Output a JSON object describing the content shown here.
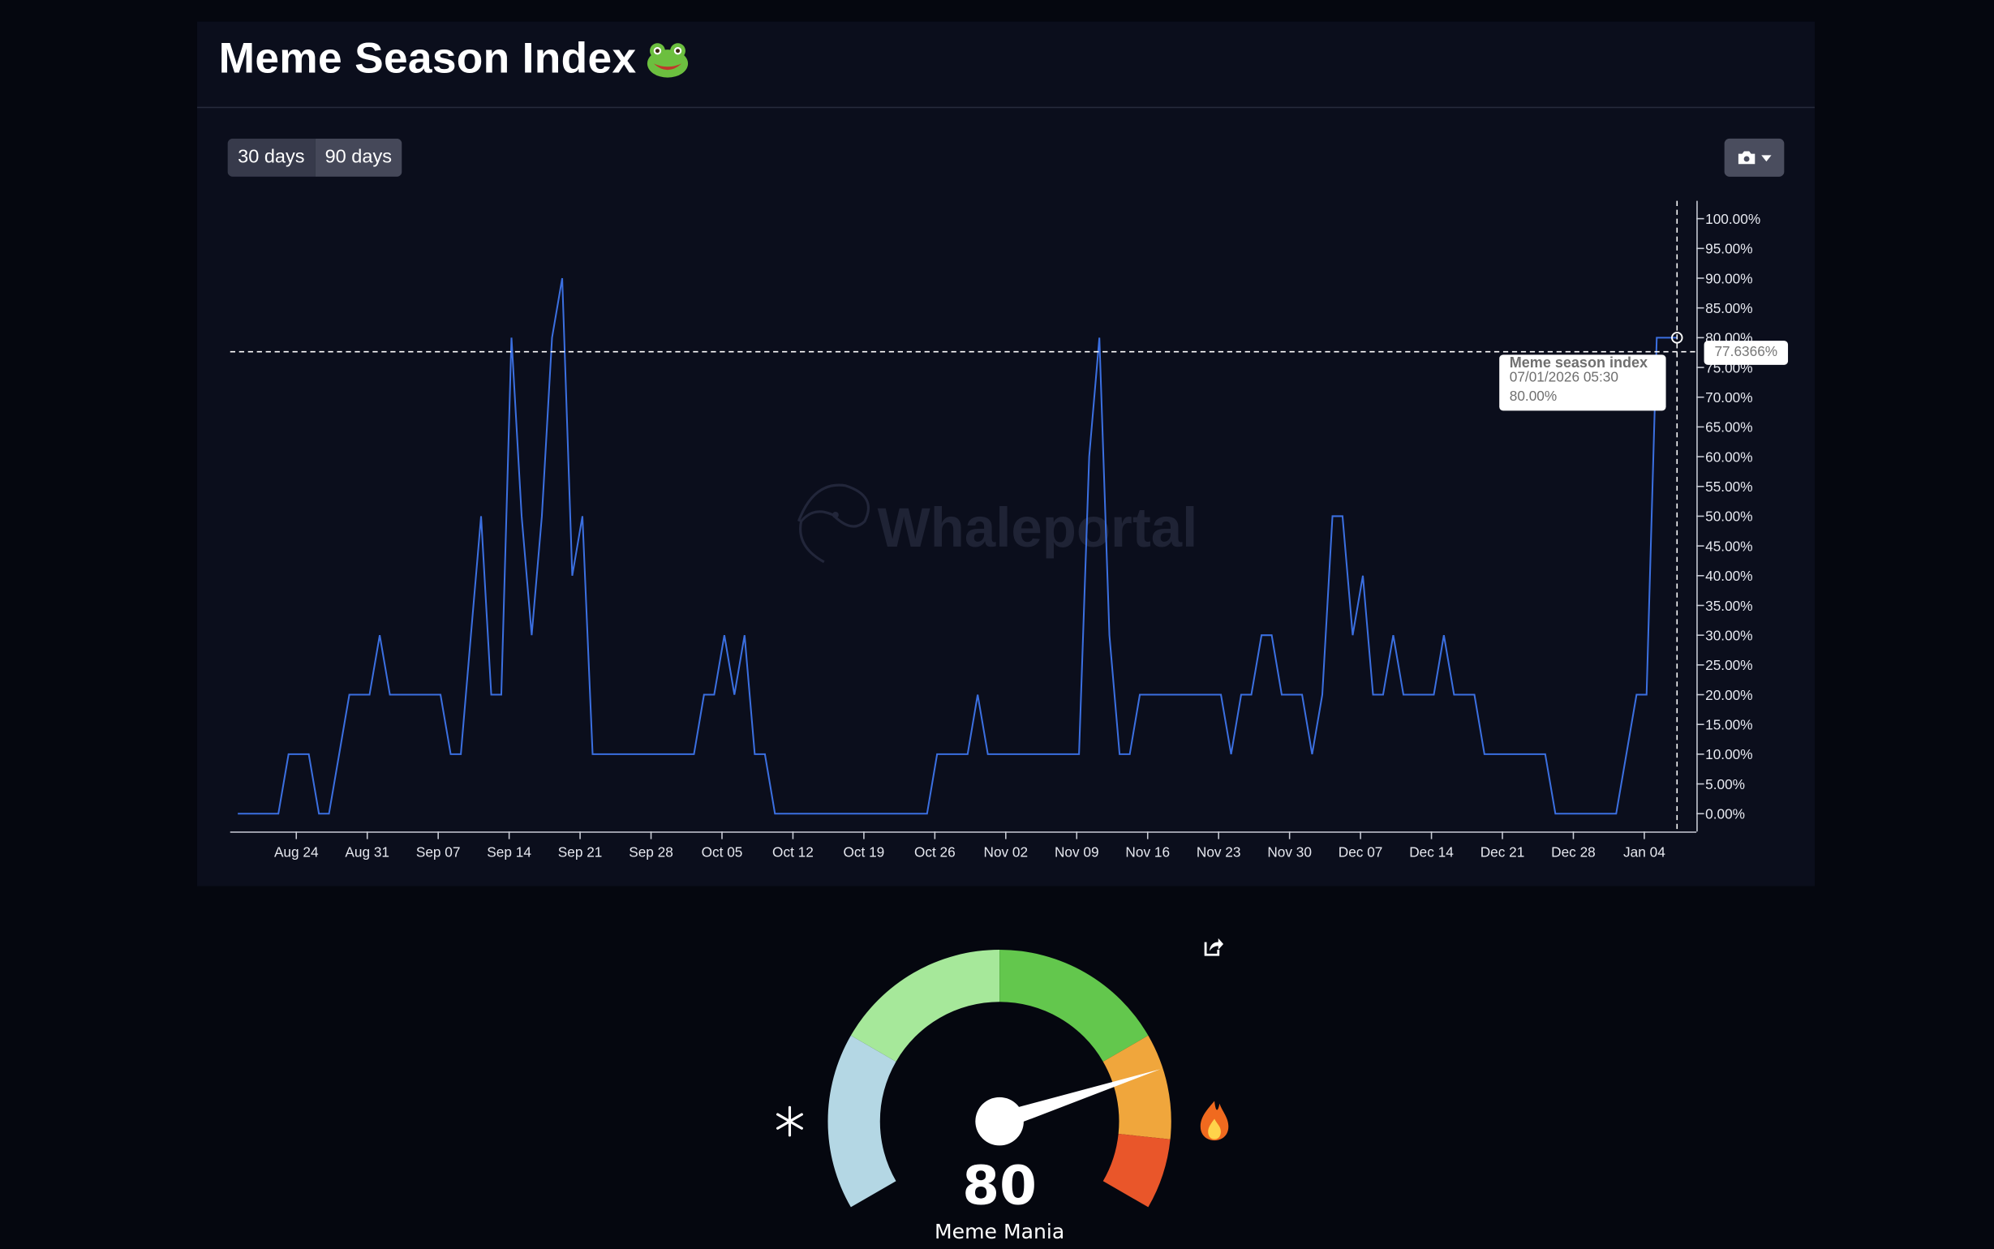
{
  "page": {
    "title": "Meme Season Index",
    "title_icon": "frog-emoji-icon",
    "range_buttons": [
      {
        "label": "30 days"
      },
      {
        "label": "90 days"
      }
    ],
    "export_button_icon": "camera-icon",
    "watermark": "Whaleportal"
  },
  "colors": {
    "background": "#05070f",
    "card": "#0b0e1c",
    "line": "#3b6fe0",
    "gauge_segments": [
      "#b4d7e4",
      "#a6e89a",
      "#63c74d",
      "#f0a63c",
      "#e9562a"
    ]
  },
  "tooltip": {
    "series": "Meme season index",
    "datetime": "07/01/2026 05:30",
    "value": "80.00%"
  },
  "crosshair": {
    "y_value": 77.6366,
    "y_label": "77.6366%",
    "x_date": "2026-01-07"
  },
  "chart_data": {
    "type": "line",
    "series": [
      {
        "name": "Meme season index"
      }
    ],
    "ylim": [
      0,
      100
    ],
    "y_axis_position": "right",
    "grid": false,
    "y_ticks": [
      0,
      5,
      10,
      15,
      20,
      25,
      30,
      35,
      40,
      45,
      50,
      55,
      60,
      65,
      70,
      75,
      80,
      85,
      90,
      95,
      100
    ],
    "y_tick_labels": [
      "0.00%",
      "5.00%",
      "10.00%",
      "15.00%",
      "20.00%",
      "25.00%",
      "30.00%",
      "35.00%",
      "40.00%",
      "45.00%",
      "50.00%",
      "55.00%",
      "60.00%",
      "65.00%",
      "70.00%",
      "75.00%",
      "80.00%",
      "85.00%",
      "90.00%",
      "95.00%",
      "100.00%"
    ],
    "x_ticks": [
      "2025-08-24",
      "2025-08-31",
      "2025-09-07",
      "2025-09-14",
      "2025-09-21",
      "2025-09-28",
      "2025-10-05",
      "2025-10-12",
      "2025-10-19",
      "2025-10-26",
      "2025-11-02",
      "2025-11-09",
      "2025-11-16",
      "2025-11-23",
      "2025-11-30",
      "2025-12-07",
      "2025-12-14",
      "2025-12-21",
      "2025-12-28",
      "2026-01-04"
    ],
    "x_tick_labels": [
      "Aug 24",
      "Aug 31",
      "Sep 07",
      "Sep 14",
      "Sep 21",
      "Sep 28",
      "Oct 05",
      "Oct 12",
      "Oct 19",
      "Oct 26",
      "Nov 02",
      "Nov 09",
      "Nov 16",
      "Nov 23",
      "Nov 30",
      "Dec 07",
      "Dec 14",
      "Dec 21",
      "Dec 28",
      "Jan 04"
    ],
    "x": [
      "2025-08-18",
      "2025-08-19",
      "2025-08-20",
      "2025-08-21",
      "2025-08-22",
      "2025-08-23",
      "2025-08-24",
      "2025-08-25",
      "2025-08-26",
      "2025-08-27",
      "2025-08-28",
      "2025-08-29",
      "2025-08-30",
      "2025-08-31",
      "2025-09-01",
      "2025-09-02",
      "2025-09-03",
      "2025-09-04",
      "2025-09-05",
      "2025-09-06",
      "2025-09-07",
      "2025-09-08",
      "2025-09-09",
      "2025-09-10",
      "2025-09-11",
      "2025-09-12",
      "2025-09-13",
      "2025-09-14",
      "2025-09-15",
      "2025-09-16",
      "2025-09-17",
      "2025-09-18",
      "2025-09-19",
      "2025-09-20",
      "2025-09-21",
      "2025-09-22",
      "2025-09-23",
      "2025-09-24",
      "2025-09-25",
      "2025-09-26",
      "2025-09-27",
      "2025-09-28",
      "2025-09-29",
      "2025-09-30",
      "2025-10-01",
      "2025-10-02",
      "2025-10-03",
      "2025-10-04",
      "2025-10-05",
      "2025-10-06",
      "2025-10-07",
      "2025-10-08",
      "2025-10-09",
      "2025-10-10",
      "2025-10-11",
      "2025-10-12",
      "2025-10-13",
      "2025-10-14",
      "2025-10-15",
      "2025-10-16",
      "2025-10-17",
      "2025-10-18",
      "2025-10-19",
      "2025-10-20",
      "2025-10-21",
      "2025-10-22",
      "2025-10-23",
      "2025-10-24",
      "2025-10-25",
      "2025-10-26",
      "2025-10-27",
      "2025-10-28",
      "2025-10-29",
      "2025-10-30",
      "2025-10-31",
      "2025-11-01",
      "2025-11-02",
      "2025-11-03",
      "2025-11-04",
      "2025-11-05",
      "2025-11-06",
      "2025-11-07",
      "2025-11-08",
      "2025-11-09",
      "2025-11-10",
      "2025-11-11",
      "2025-11-12",
      "2025-11-13",
      "2025-11-14",
      "2025-11-15",
      "2025-11-16",
      "2025-11-17",
      "2025-11-18",
      "2025-11-19",
      "2025-11-20",
      "2025-11-21",
      "2025-11-22",
      "2025-11-23",
      "2025-11-24",
      "2025-11-25",
      "2025-11-26",
      "2025-11-27",
      "2025-11-28",
      "2025-11-29",
      "2025-11-30",
      "2025-12-01",
      "2025-12-02",
      "2025-12-03",
      "2025-12-04",
      "2025-12-05",
      "2025-12-06",
      "2025-12-07",
      "2025-12-08",
      "2025-12-09",
      "2025-12-10",
      "2025-12-11",
      "2025-12-12",
      "2025-12-13",
      "2025-12-14",
      "2025-12-15",
      "2025-12-16",
      "2025-12-17",
      "2025-12-18",
      "2025-12-19",
      "2025-12-20",
      "2025-12-21",
      "2025-12-22",
      "2025-12-23",
      "2025-12-24",
      "2025-12-25",
      "2025-12-26",
      "2025-12-27",
      "2025-12-28",
      "2025-12-29",
      "2025-12-30",
      "2025-12-31",
      "2026-01-01",
      "2026-01-02",
      "2026-01-03",
      "2026-01-04",
      "2026-01-05",
      "2026-01-06",
      "2026-01-07"
    ],
    "values": [
      0,
      0,
      0,
      0,
      0,
      10,
      10,
      10,
      0,
      0,
      10,
      20,
      20,
      20,
      30,
      20,
      20,
      20,
      20,
      20,
      20,
      10,
      10,
      30,
      50,
      20,
      20,
      80,
      50,
      30,
      50,
      80,
      90,
      40,
      50,
      10,
      10,
      10,
      10,
      10,
      10,
      10,
      10,
      10,
      10,
      10,
      20,
      20,
      30,
      20,
      30,
      10,
      10,
      0,
      0,
      0,
      0,
      0,
      0,
      0,
      0,
      0,
      0,
      0,
      0,
      0,
      0,
      0,
      0,
      10,
      10,
      10,
      10,
      20,
      10,
      10,
      10,
      10,
      10,
      10,
      10,
      10,
      10,
      10,
      60,
      80,
      30,
      10,
      10,
      20,
      20,
      20,
      20,
      20,
      20,
      20,
      20,
      20,
      10,
      20,
      20,
      30,
      30,
      20,
      20,
      20,
      10,
      20,
      50,
      50,
      30,
      40,
      20,
      20,
      30,
      20,
      20,
      20,
      20,
      30,
      20,
      20,
      20,
      10,
      10,
      10,
      10,
      10,
      10,
      10,
      0,
      0,
      0,
      0,
      0,
      0,
      0,
      10,
      20,
      20,
      80,
      80,
      80
    ]
  },
  "gauge": {
    "value": 80,
    "value_text": "80",
    "label": "Meme Mania",
    "min": 0,
    "max": 100,
    "segment_bounds": [
      0,
      25,
      50,
      75,
      90,
      100
    ],
    "left_icon": "snowflake-icon",
    "right_icon": "fire-icon",
    "share_icon": "share-icon"
  }
}
